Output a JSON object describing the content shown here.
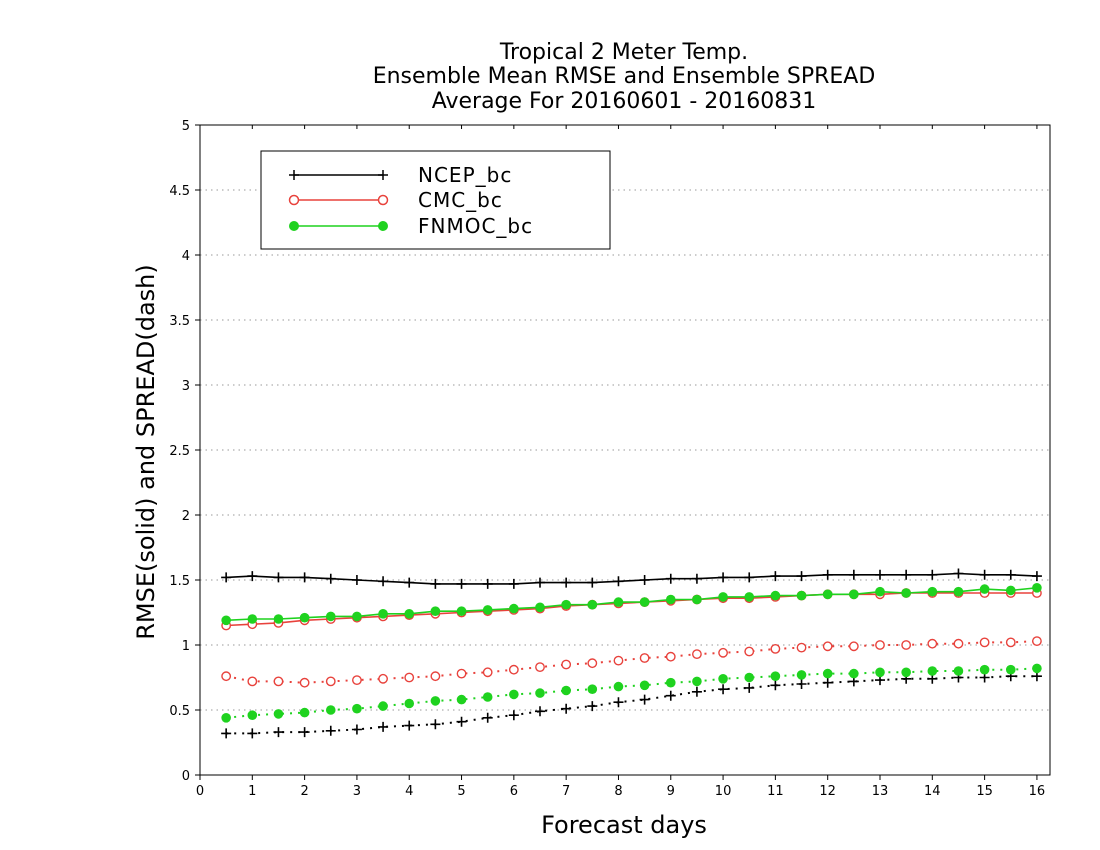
{
  "chart_data": {
    "type": "line",
    "title": [
      "Tropical 2 Meter Temp.",
      "Ensemble Mean RMSE and Ensemble SPREAD",
      "Average For 20160601 - 20160831"
    ],
    "xlabel": "Forecast days",
    "ylabel": "RMSE(solid) and SPREAD(dash)",
    "xlim": [
      0,
      16.25
    ],
    "ylim": [
      0,
      5
    ],
    "x_ticks": [
      0,
      1,
      2,
      3,
      4,
      5,
      6,
      7,
      8,
      9,
      10,
      11,
      12,
      13,
      14,
      15,
      16
    ],
    "y_ticks": [
      0,
      0.5,
      1,
      1.5,
      2,
      2.5,
      3,
      3.5,
      4,
      4.5,
      5
    ],
    "y_tick_labels": [
      "0",
      "0.5",
      "1",
      "1.5",
      "2",
      "2.5",
      "3",
      "3.5",
      "4",
      "4.5",
      "5"
    ],
    "grid": "horizontal dotted",
    "legend_position": "top-left",
    "x": [
      0.5,
      1,
      1.5,
      2,
      2.5,
      3,
      3.5,
      4,
      4.5,
      5,
      5.5,
      6,
      6.5,
      7,
      7.5,
      8,
      8.5,
      9,
      9.5,
      10,
      10.5,
      11,
      11.5,
      12,
      12.5,
      13,
      13.5,
      14,
      14.5,
      15,
      15.5,
      16
    ],
    "series": [
      {
        "name": "NCEP_bc",
        "color": "#000000",
        "marker": "plus",
        "rmse": [
          1.52,
          1.53,
          1.52,
          1.52,
          1.51,
          1.5,
          1.49,
          1.48,
          1.47,
          1.47,
          1.47,
          1.47,
          1.48,
          1.48,
          1.48,
          1.49,
          1.5,
          1.51,
          1.51,
          1.52,
          1.52,
          1.53,
          1.53,
          1.54,
          1.54,
          1.54,
          1.54,
          1.54,
          1.55,
          1.54,
          1.54,
          1.53
        ],
        "spread": [
          0.32,
          0.32,
          0.33,
          0.33,
          0.34,
          0.35,
          0.37,
          0.38,
          0.39,
          0.41,
          0.44,
          0.46,
          0.49,
          0.51,
          0.53,
          0.56,
          0.58,
          0.61,
          0.64,
          0.66,
          0.67,
          0.69,
          0.7,
          0.71,
          0.72,
          0.73,
          0.74,
          0.74,
          0.75,
          0.75,
          0.76,
          0.76
        ]
      },
      {
        "name": "CMC_bc",
        "color": "#e8423c",
        "marker": "open-circle",
        "rmse": [
          1.15,
          1.16,
          1.17,
          1.19,
          1.2,
          1.21,
          1.22,
          1.23,
          1.24,
          1.25,
          1.26,
          1.27,
          1.28,
          1.3,
          1.31,
          1.32,
          1.33,
          1.34,
          1.35,
          1.36,
          1.36,
          1.37,
          1.38,
          1.39,
          1.39,
          1.39,
          1.4,
          1.4,
          1.4,
          1.4,
          1.4,
          1.4
        ],
        "spread": [
          0.76,
          0.72,
          0.72,
          0.71,
          0.72,
          0.73,
          0.74,
          0.75,
          0.76,
          0.78,
          0.79,
          0.81,
          0.83,
          0.85,
          0.86,
          0.88,
          0.9,
          0.91,
          0.93,
          0.94,
          0.95,
          0.97,
          0.98,
          0.99,
          0.99,
          1.0,
          1.0,
          1.01,
          1.01,
          1.02,
          1.02,
          1.03
        ]
      },
      {
        "name": "FNMOC_bc",
        "color": "#1fd21f",
        "marker": "filled-circle",
        "rmse": [
          1.19,
          1.2,
          1.2,
          1.21,
          1.22,
          1.22,
          1.24,
          1.24,
          1.26,
          1.26,
          1.27,
          1.28,
          1.29,
          1.31,
          1.31,
          1.33,
          1.33,
          1.35,
          1.35,
          1.37,
          1.37,
          1.38,
          1.38,
          1.39,
          1.39,
          1.41,
          1.4,
          1.41,
          1.41,
          1.43,
          1.42,
          1.44
        ],
        "spread": [
          0.44,
          0.46,
          0.47,
          0.48,
          0.5,
          0.51,
          0.53,
          0.55,
          0.57,
          0.58,
          0.6,
          0.62,
          0.63,
          0.65,
          0.66,
          0.68,
          0.69,
          0.71,
          0.72,
          0.74,
          0.75,
          0.76,
          0.77,
          0.78,
          0.78,
          0.79,
          0.79,
          0.8,
          0.8,
          0.81,
          0.81,
          0.82
        ]
      }
    ]
  }
}
